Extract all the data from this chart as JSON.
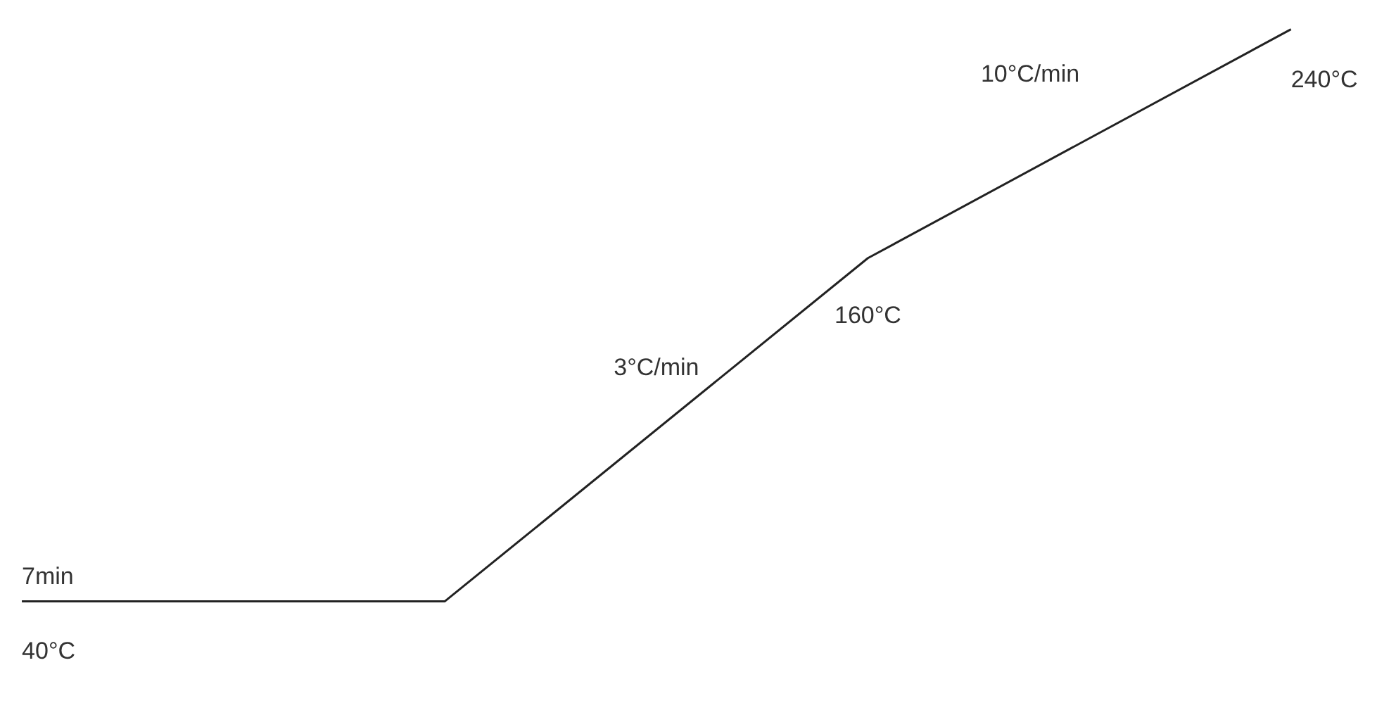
{
  "chart_data": {
    "type": "line",
    "categories": [
      null,
      null,
      null,
      null
    ],
    "series": [
      {
        "color": "#222222",
        "values": [
          40,
          40,
          160,
          240
        ],
        "value_labels": [
          "40°C",
          null,
          "160°C",
          "240°C"
        ]
      }
    ],
    "annotations": [
      "7min",
      "3°C/min",
      "10°C/min"
    ],
    "tick_labels": false,
    "line_style": "solid"
  }
}
